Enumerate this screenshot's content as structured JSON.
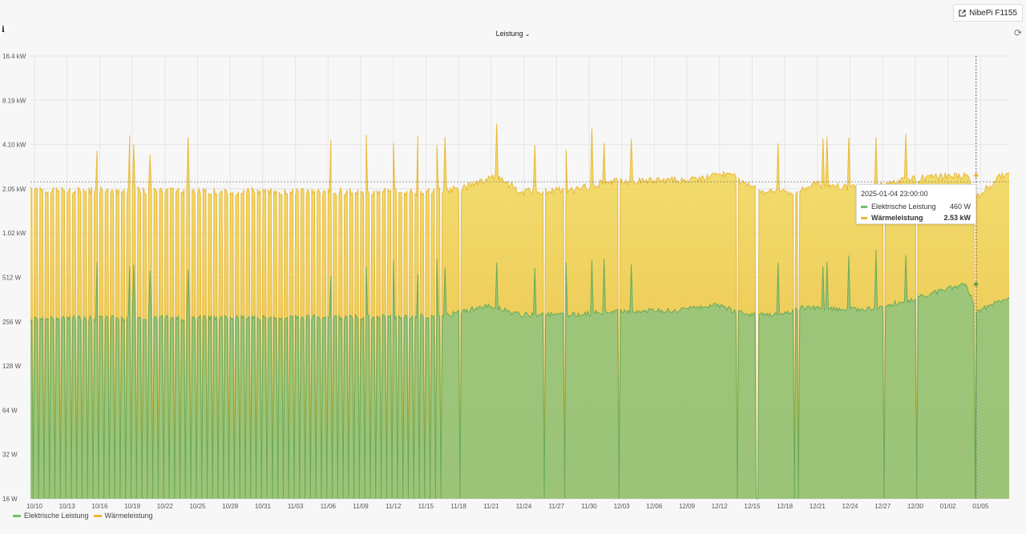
{
  "header": {
    "link_label": "NibePi F1155"
  },
  "panel": {
    "title": "Leistung",
    "info": "i"
  },
  "tooltip": {
    "date": "2025-01-04 23:00:00",
    "rows": [
      {
        "name": "Elektrische Leistung",
        "value": "460 W",
        "color": "#73bf69"
      },
      {
        "name": "Wärmeleistung",
        "value": "2.53 kW",
        "color": "#eab839"
      }
    ]
  },
  "colors": {
    "electric": "#73bf69",
    "heat": "#eab839",
    "grid": "#e6e6e6",
    "crosshair": "#666666"
  },
  "chart_data": {
    "type": "area",
    "y_scale": "log2",
    "ylim_watts": [
      16,
      16384
    ],
    "y_ticks": [
      "16 W",
      "32 W",
      "64 W",
      "128 W",
      "256 W",
      "512 W",
      "1.02 kW",
      "2.05 kW",
      "4.10 kW",
      "8.19 kW",
      "16.4 kW"
    ],
    "x_ticks": [
      "10/10",
      "10/13",
      "10/16",
      "10/19",
      "10/22",
      "10/25",
      "10/28",
      "10/31",
      "11/03",
      "11/06",
      "11/09",
      "11/12",
      "11/15",
      "11/18",
      "11/21",
      "11/24",
      "11/27",
      "11/30",
      "12/03",
      "12/06",
      "12/09",
      "12/12",
      "12/15",
      "12/18",
      "12/21",
      "12/24",
      "12/27",
      "12/30",
      "01/02",
      "01/05"
    ],
    "x_range": [
      "2024-10-10",
      "2025-01-08"
    ],
    "grid": true,
    "legend_position": "bottom-left",
    "series": [
      {
        "name": "Elektrische Leistung",
        "level_by_date": [
          [
            "2024-10-10",
            270
          ],
          [
            "2024-11-10",
            275
          ],
          [
            "2024-11-17",
            280
          ],
          [
            "2024-11-21",
            330
          ],
          [
            "2024-11-24",
            285
          ],
          [
            "2024-11-29",
            285
          ],
          [
            "2024-12-02",
            300
          ],
          [
            "2024-12-08",
            305
          ],
          [
            "2024-12-12",
            330
          ],
          [
            "2024-12-15",
            285
          ],
          [
            "2024-12-18",
            285
          ],
          [
            "2024-12-20",
            320
          ],
          [
            "2024-12-26",
            310
          ],
          [
            "2024-12-30",
            360
          ],
          [
            "2025-01-04",
            460
          ],
          [
            "2025-01-05",
            300
          ],
          [
            "2025-01-08",
            380
          ]
        ]
      },
      {
        "name": "Wärmeleistung",
        "level_by_date": [
          [
            "2024-10-10",
            2000
          ],
          [
            "2024-11-15",
            1950
          ],
          [
            "2024-11-19",
            2100
          ],
          [
            "2024-11-22",
            2500
          ],
          [
            "2024-11-24",
            1950
          ],
          [
            "2024-11-29",
            2000
          ],
          [
            "2024-12-02",
            2300
          ],
          [
            "2024-12-10",
            2350
          ],
          [
            "2024-12-13",
            2600
          ],
          [
            "2024-12-16",
            2000
          ],
          [
            "2024-12-19",
            1900
          ],
          [
            "2024-12-21",
            2200
          ],
          [
            "2024-12-26",
            2050
          ],
          [
            "2024-12-30",
            2400
          ],
          [
            "2025-01-04",
            2530
          ],
          [
            "2025-01-05",
            1800
          ],
          [
            "2025-01-08",
            2700
          ]
        ]
      }
    ],
    "crosshair": {
      "date": "2025-01-04",
      "electric_w": 460,
      "heat_w": 2530
    }
  }
}
